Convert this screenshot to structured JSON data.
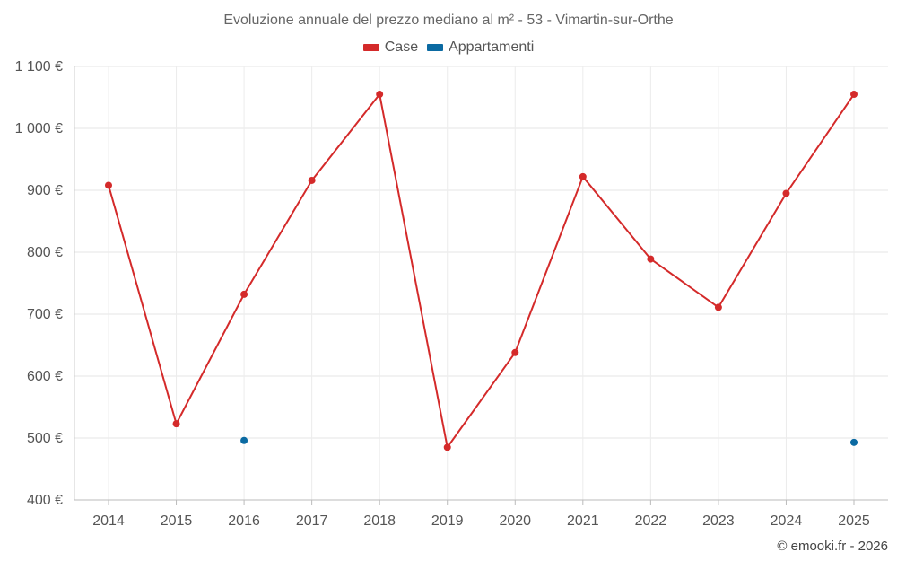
{
  "chart_data": {
    "type": "line",
    "title": "Evoluzione annuale del prezzo mediano al m² - 53 - Vimartin-sur-Orthe",
    "categories": [
      "2014",
      "2015",
      "2016",
      "2017",
      "2018",
      "2019",
      "2020",
      "2021",
      "2022",
      "2023",
      "2024",
      "2025"
    ],
    "series": [
      {
        "name": "Case",
        "color": "#d42a2a",
        "values": [
          908,
          523,
          732,
          916,
          1055,
          485,
          638,
          922,
          789,
          711,
          895,
          1055
        ]
      },
      {
        "name": "Appartamenti",
        "color": "#0b6aa2",
        "values": [
          null,
          null,
          496,
          null,
          null,
          null,
          null,
          null,
          null,
          null,
          null,
          493
        ]
      }
    ],
    "ylim": [
      400,
      1100
    ],
    "yticks": [
      400,
      500,
      600,
      700,
      800,
      900,
      1000,
      1100
    ],
    "ytick_labels": [
      "400 €",
      "500 €",
      "600 €",
      "700 €",
      "800 €",
      "900 €",
      "1 000 €",
      "1 100 €"
    ],
    "xlabel": "",
    "ylabel": "",
    "grid": true,
    "legend_position": "top-center"
  },
  "credit": "© emooki.fr - 2026"
}
